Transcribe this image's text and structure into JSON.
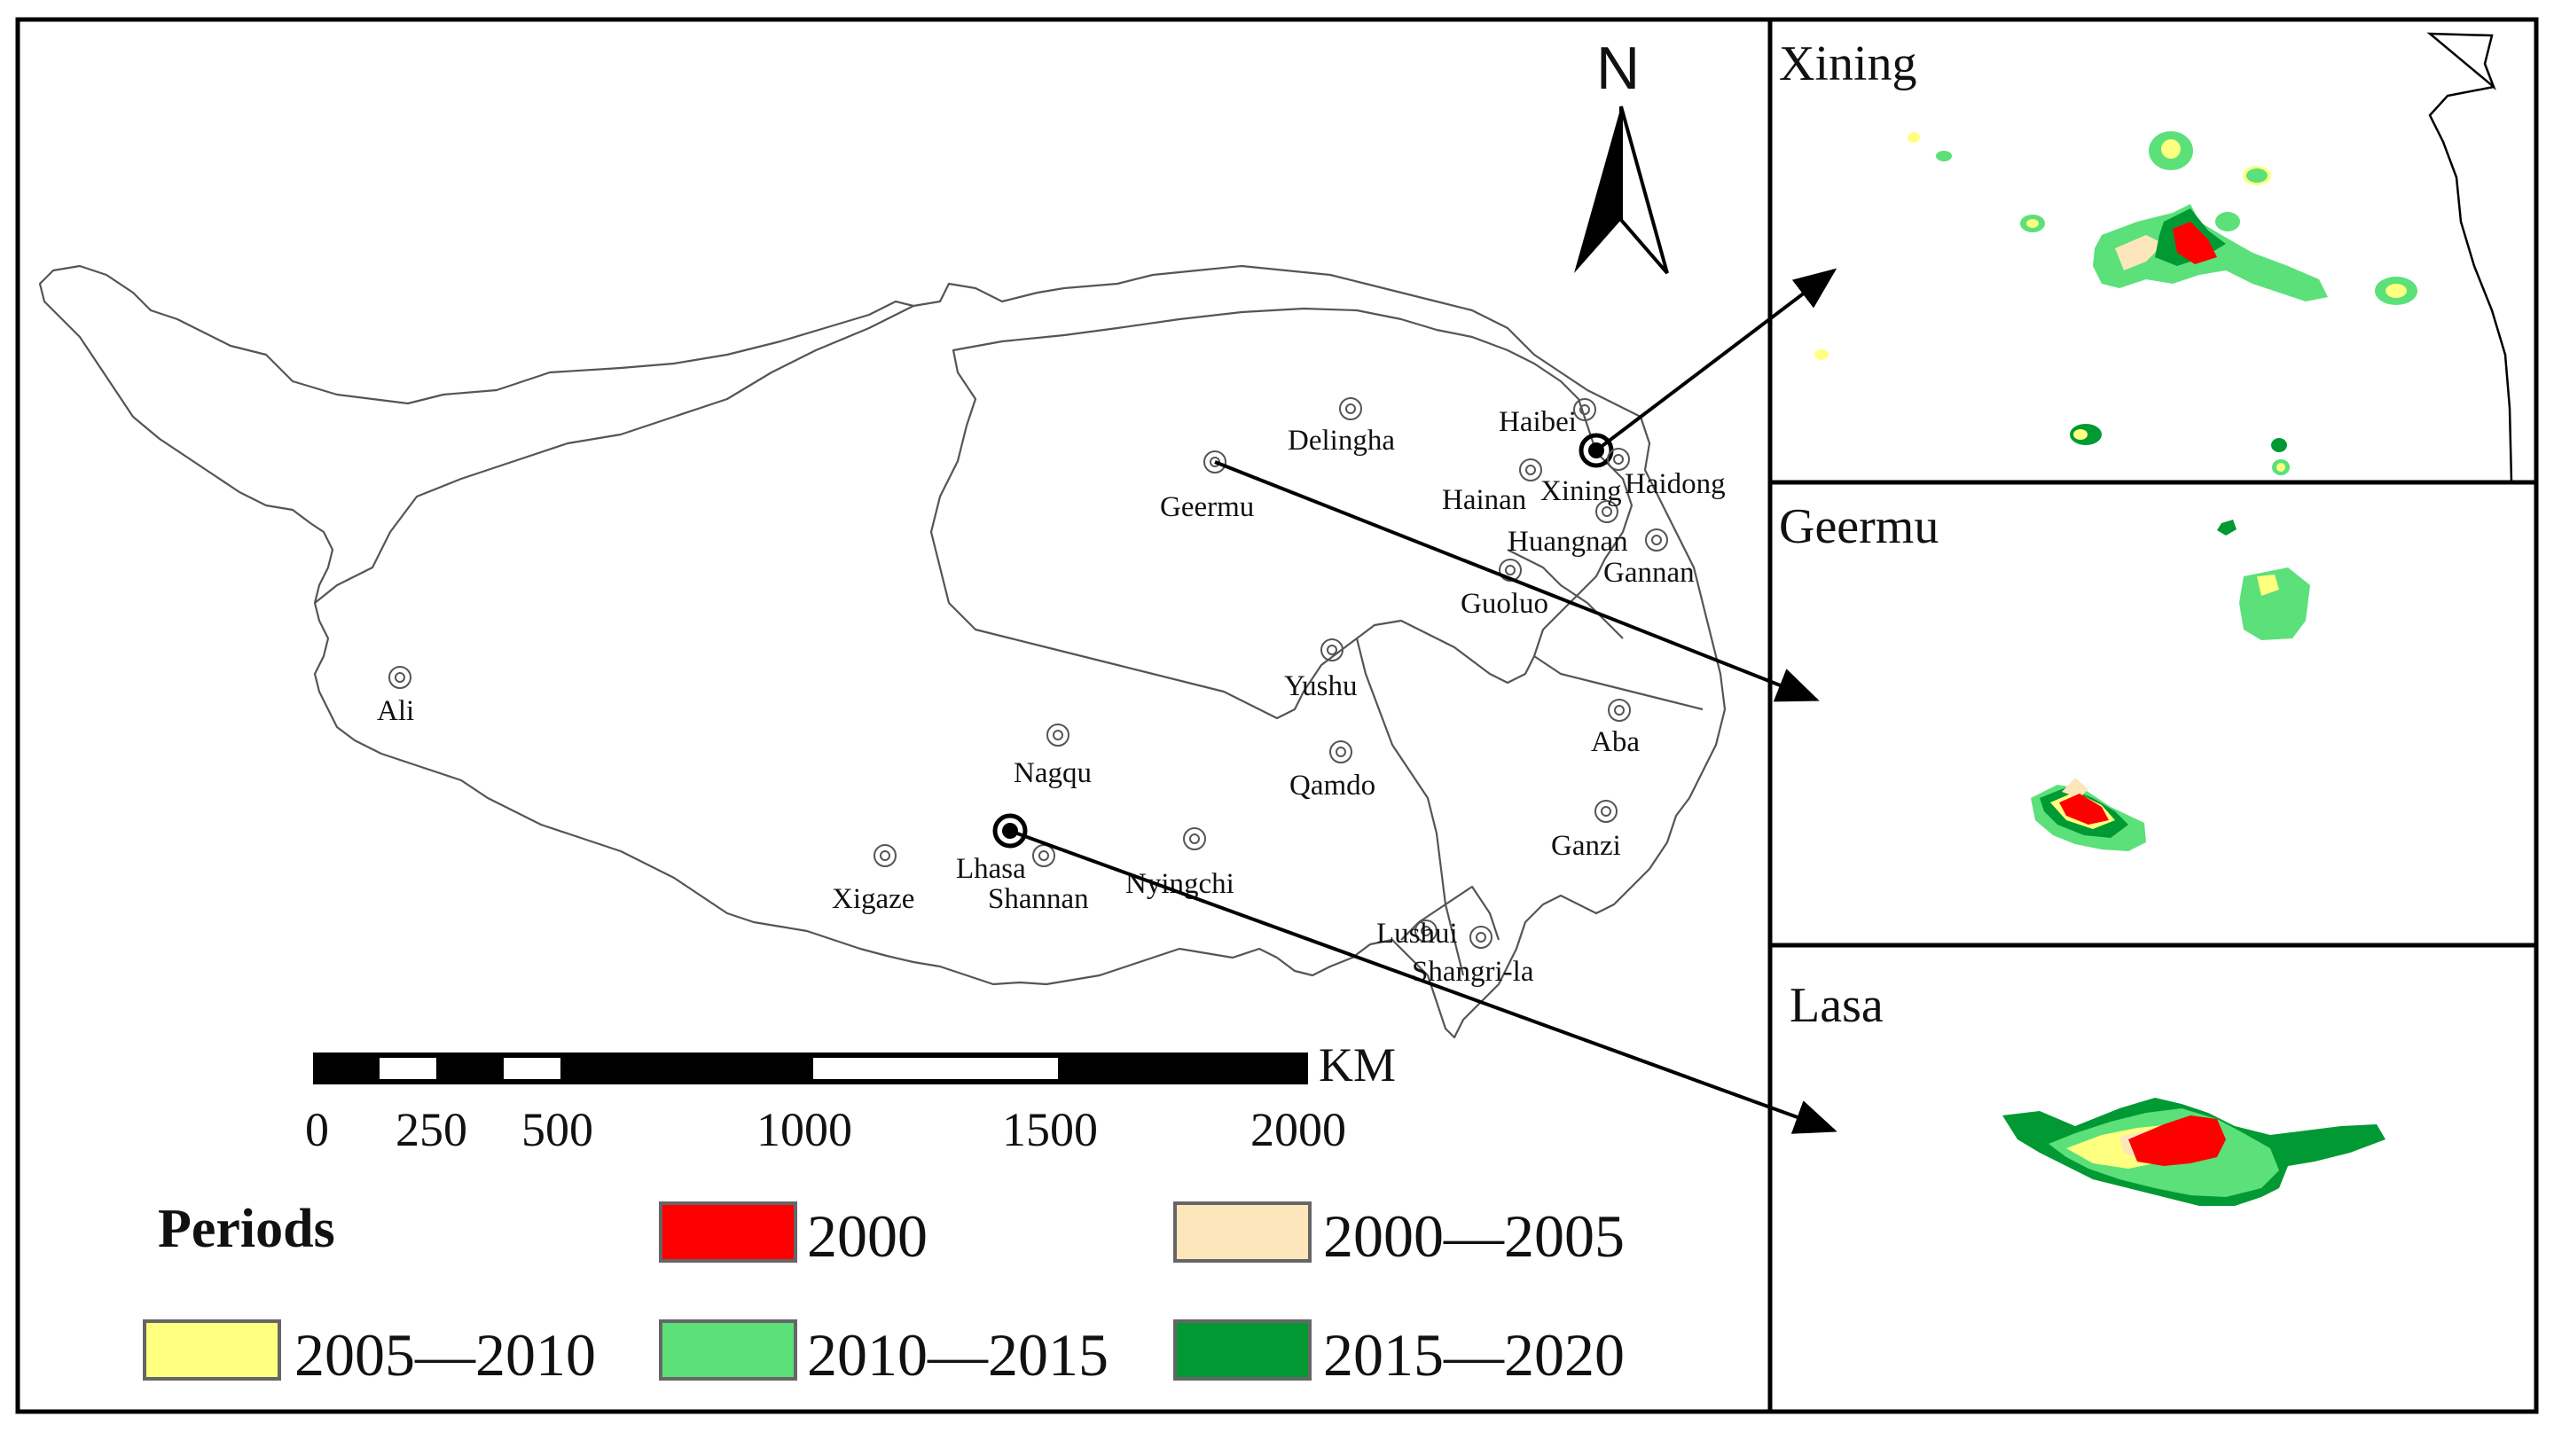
{
  "north_label": "N",
  "scale_unit": "KM",
  "scale_ticks": [
    "0",
    "250",
    "500",
    "1000",
    "1500",
    "2000"
  ],
  "legend": {
    "title": "Periods",
    "items": [
      {
        "label": "2000",
        "color": "#ff0000"
      },
      {
        "label": "2000—2005",
        "color": "#fde6bb"
      },
      {
        "label": "2005—2010",
        "color": "#ffff80"
      },
      {
        "label": "2010—2015",
        "color": "#5be07a"
      },
      {
        "label": "2015—2020",
        "color": "#009933"
      }
    ]
  },
  "cities": [
    "Haibei",
    "Delingha",
    "Xining",
    "Haidong",
    "Hainan",
    "Geermu",
    "Huangnan",
    "Gannan",
    "Guoluo",
    "Yushu",
    "Ali",
    "Nagqu",
    "Aba",
    "Qamdo",
    "Lhasa",
    "Shannan",
    "Nyingchi",
    "Xigaze",
    "Ganzi",
    "Lushui",
    "Shangri-la"
  ],
  "insets": {
    "xining": "Xining",
    "geermu": "Geermu",
    "lasa": "Lasa"
  }
}
